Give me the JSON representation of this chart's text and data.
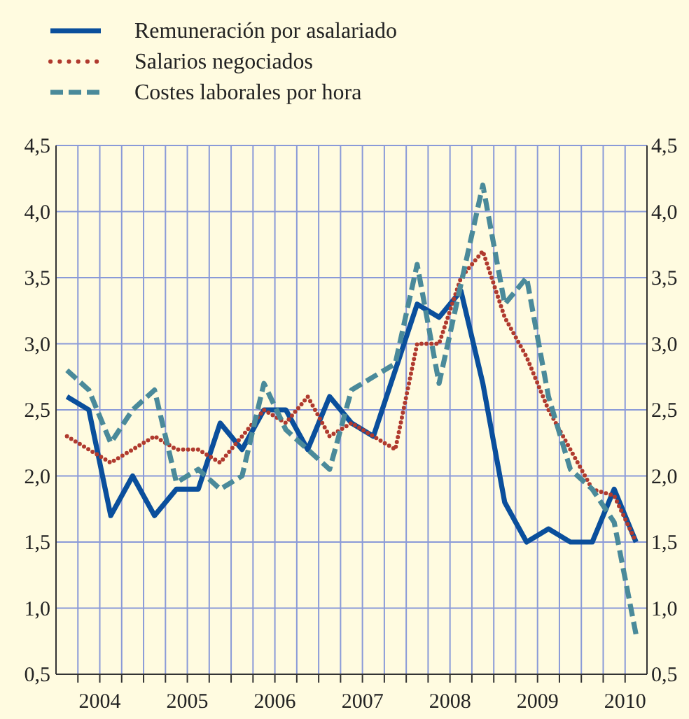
{
  "chart_data": {
    "type": "line",
    "x": [
      2004.125,
      2004.375,
      2004.625,
      2004.875,
      2005.125,
      2005.375,
      2005.625,
      2005.875,
      2006.125,
      2006.375,
      2006.625,
      2006.875,
      2007.125,
      2007.375,
      2007.625,
      2007.875,
      2008.125,
      2008.375,
      2008.625,
      2008.875,
      2009.125,
      2009.375,
      2009.625,
      2009.875,
      2010.125,
      2010.375,
      2010.625
    ],
    "series": [
      {
        "name": "Remuneración por asalariado",
        "color": "#0a4f9c",
        "line_style": "solid",
        "values": [
          2.6,
          2.5,
          1.7,
          2.0,
          1.7,
          1.9,
          1.9,
          2.4,
          2.2,
          2.5,
          2.5,
          2.2,
          2.6,
          2.4,
          2.3,
          2.8,
          3.3,
          3.2,
          3.4,
          2.7,
          1.8,
          1.5,
          1.6,
          1.5,
          1.5,
          1.9,
          1.5
        ]
      },
      {
        "name": "Salarios negociados",
        "color": "#b03a2e",
        "line_style": "dotted",
        "values": [
          2.3,
          2.2,
          2.1,
          2.2,
          2.3,
          2.2,
          2.2,
          2.1,
          2.3,
          2.5,
          2.4,
          2.6,
          2.3,
          2.4,
          2.3,
          2.2,
          3.0,
          3.0,
          3.5,
          3.7,
          3.2,
          2.9,
          2.5,
          2.2,
          1.9,
          1.85,
          1.5
        ]
      },
      {
        "name": "Costes laborales por hora",
        "color": "#4a8a9a",
        "line_style": "dashed",
        "values": [
          2.8,
          2.65,
          2.25,
          2.5,
          2.65,
          1.95,
          2.05,
          1.9,
          2.0,
          2.7,
          2.35,
          2.2,
          2.05,
          2.65,
          2.75,
          2.85,
          3.6,
          2.7,
          3.45,
          4.2,
          3.3,
          3.5,
          2.6,
          2.05,
          1.9,
          1.65,
          0.8
        ]
      }
    ],
    "xlim": [
      2004,
      2010.75
    ],
    "xticks": [
      {
        "value": 2004.25,
        "label": null
      },
      {
        "value": 2004.5,
        "label": "2004"
      },
      {
        "value": 2004.75,
        "label": null
      },
      {
        "value": 2005,
        "label": null
      },
      {
        "value": 2005.25,
        "label": null
      },
      {
        "value": 2005.5,
        "label": "2005"
      },
      {
        "value": 2005.75,
        "label": null
      },
      {
        "value": 2006,
        "label": null
      },
      {
        "value": 2006.25,
        "label": null
      },
      {
        "value": 2006.5,
        "label": "2006"
      },
      {
        "value": 2006.75,
        "label": null
      },
      {
        "value": 2007,
        "label": null
      },
      {
        "value": 2007.25,
        "label": null
      },
      {
        "value": 2007.5,
        "label": "2007"
      },
      {
        "value": 2007.75,
        "label": null
      },
      {
        "value": 2008,
        "label": null
      },
      {
        "value": 2008.25,
        "label": null
      },
      {
        "value": 2008.5,
        "label": "2008"
      },
      {
        "value": 2008.75,
        "label": null
      },
      {
        "value": 2009,
        "label": null
      },
      {
        "value": 2009.25,
        "label": null
      },
      {
        "value": 2009.5,
        "label": "2009"
      },
      {
        "value": 2009.75,
        "label": null
      },
      {
        "value": 2010,
        "label": null
      },
      {
        "value": 2010.25,
        "label": null
      },
      {
        "value": 2010.5,
        "label": "2010"
      }
    ],
    "ylim": [
      0.5,
      4.5
    ],
    "yticks": [
      {
        "value": 0.5,
        "label": "0,5"
      },
      {
        "value": 1,
        "label": "1,0"
      },
      {
        "value": 1.5,
        "label": "1,5"
      },
      {
        "value": 2,
        "label": "2,0"
      },
      {
        "value": 2.5,
        "label": "2,5"
      },
      {
        "value": 3,
        "label": "3,0"
      },
      {
        "value": 3.5,
        "label": "3,5"
      },
      {
        "value": 4,
        "label": "4,0"
      },
      {
        "value": 4.5,
        "label": "4,5"
      }
    ],
    "y2lim": [
      0.5,
      4.5
    ],
    "y2ticks": [
      {
        "value": 0.5,
        "label": "0,5"
      },
      {
        "value": 1,
        "label": "1,0"
      },
      {
        "value": 1.5,
        "label": "1,5"
      },
      {
        "value": 2,
        "label": "2,0"
      },
      {
        "value": 2.5,
        "label": "2,5"
      },
      {
        "value": 3,
        "label": "3,0"
      },
      {
        "value": 3.5,
        "label": "3,5"
      },
      {
        "value": 4,
        "label": "4,0"
      },
      {
        "value": 4.5,
        "label": "4,5"
      }
    ],
    "grid": true,
    "legend": "top left",
    "marker": "none"
  }
}
